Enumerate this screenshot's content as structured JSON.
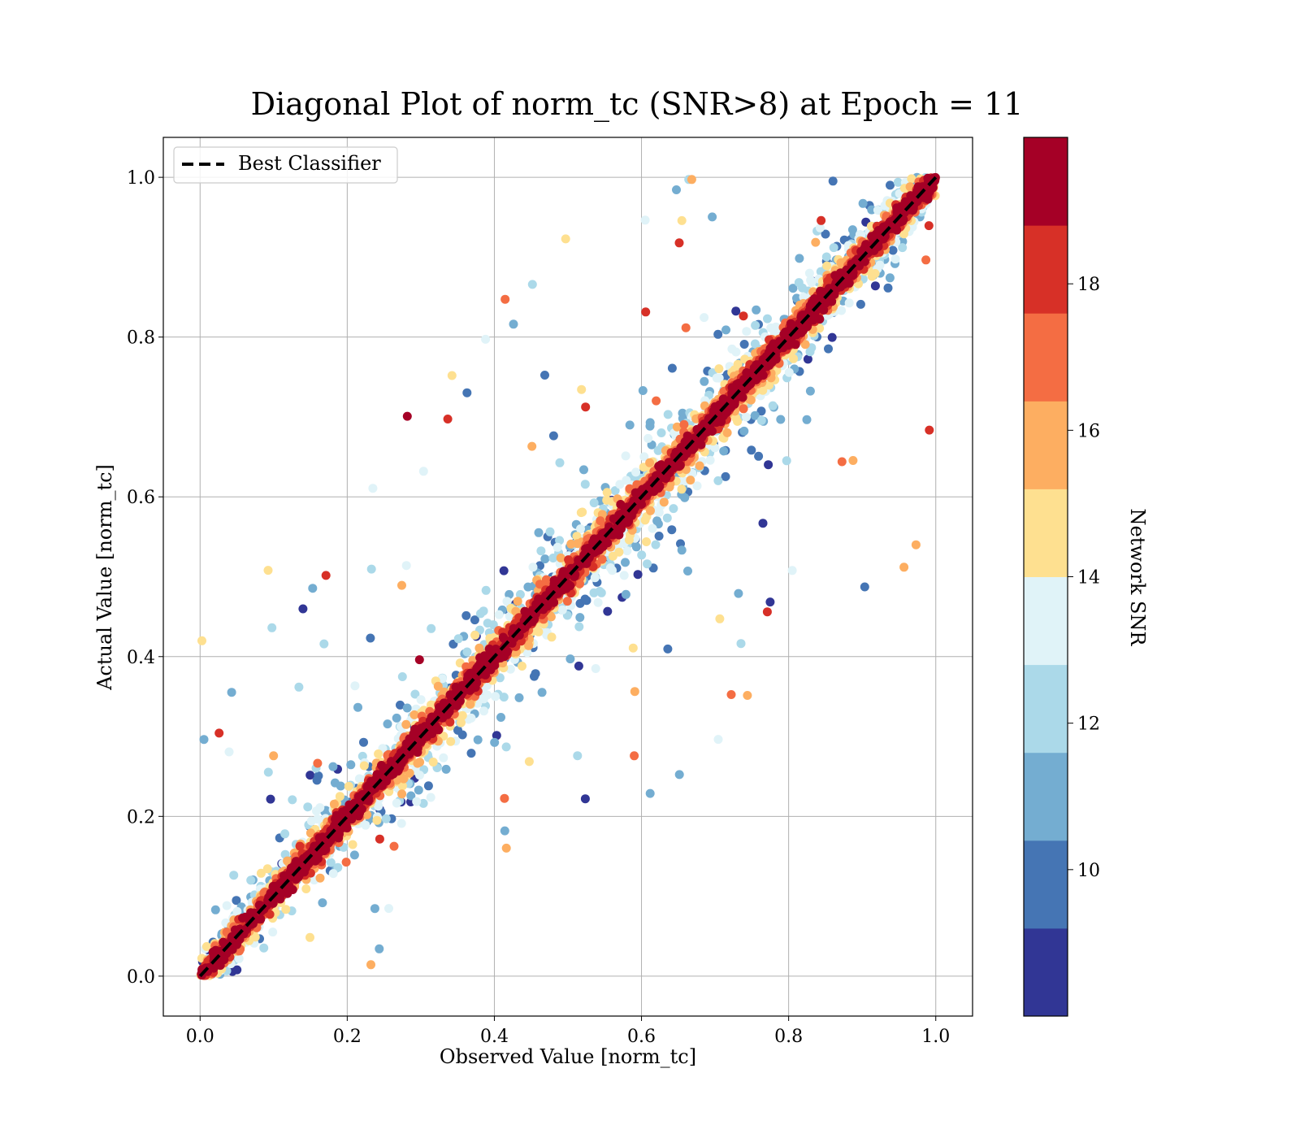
{
  "chart_data": {
    "type": "scatter",
    "title": "Diagonal Plot of norm_tc (SNR>8) at Epoch = 11",
    "xlabel": "Observed Value [norm_tc]",
    "ylabel": "Actual Value [norm_tc]",
    "xlim": [
      -0.05,
      1.05
    ],
    "ylim": [
      -0.05,
      1.05
    ],
    "xticks": [
      "0.0",
      "0.2",
      "0.4",
      "0.6",
      "0.8",
      "1.0"
    ],
    "yticks": [
      "0.0",
      "0.2",
      "0.4",
      "0.6",
      "0.8",
      "1.0"
    ],
    "grid": true,
    "legend": {
      "placement": "upper-left",
      "entries": [
        "Best Classifier"
      ]
    },
    "reference_line": {
      "label": "Best Classifier",
      "x": [
        0,
        1
      ],
      "y": [
        0,
        1
      ],
      "style": "dashed",
      "color": "#000000"
    },
    "colorbar": {
      "label": "Network SNR",
      "ticks": [
        "10",
        "12",
        "14",
        "16",
        "18"
      ],
      "range": [
        8,
        20
      ],
      "colors": [
        "#313695",
        "#4575b4",
        "#74add1",
        "#abd9e9",
        "#e0f3f8",
        "#fee090",
        "#fdae61",
        "#f46d43",
        "#d73027",
        "#a50026"
      ]
    },
    "description_of_points": "Tens of thousands of points concentrated along y = x; high-SNR points (red) tight on the diagonal, low-SNR points (blue) scattered widely, especially for observed values 0.3–0.9."
  }
}
